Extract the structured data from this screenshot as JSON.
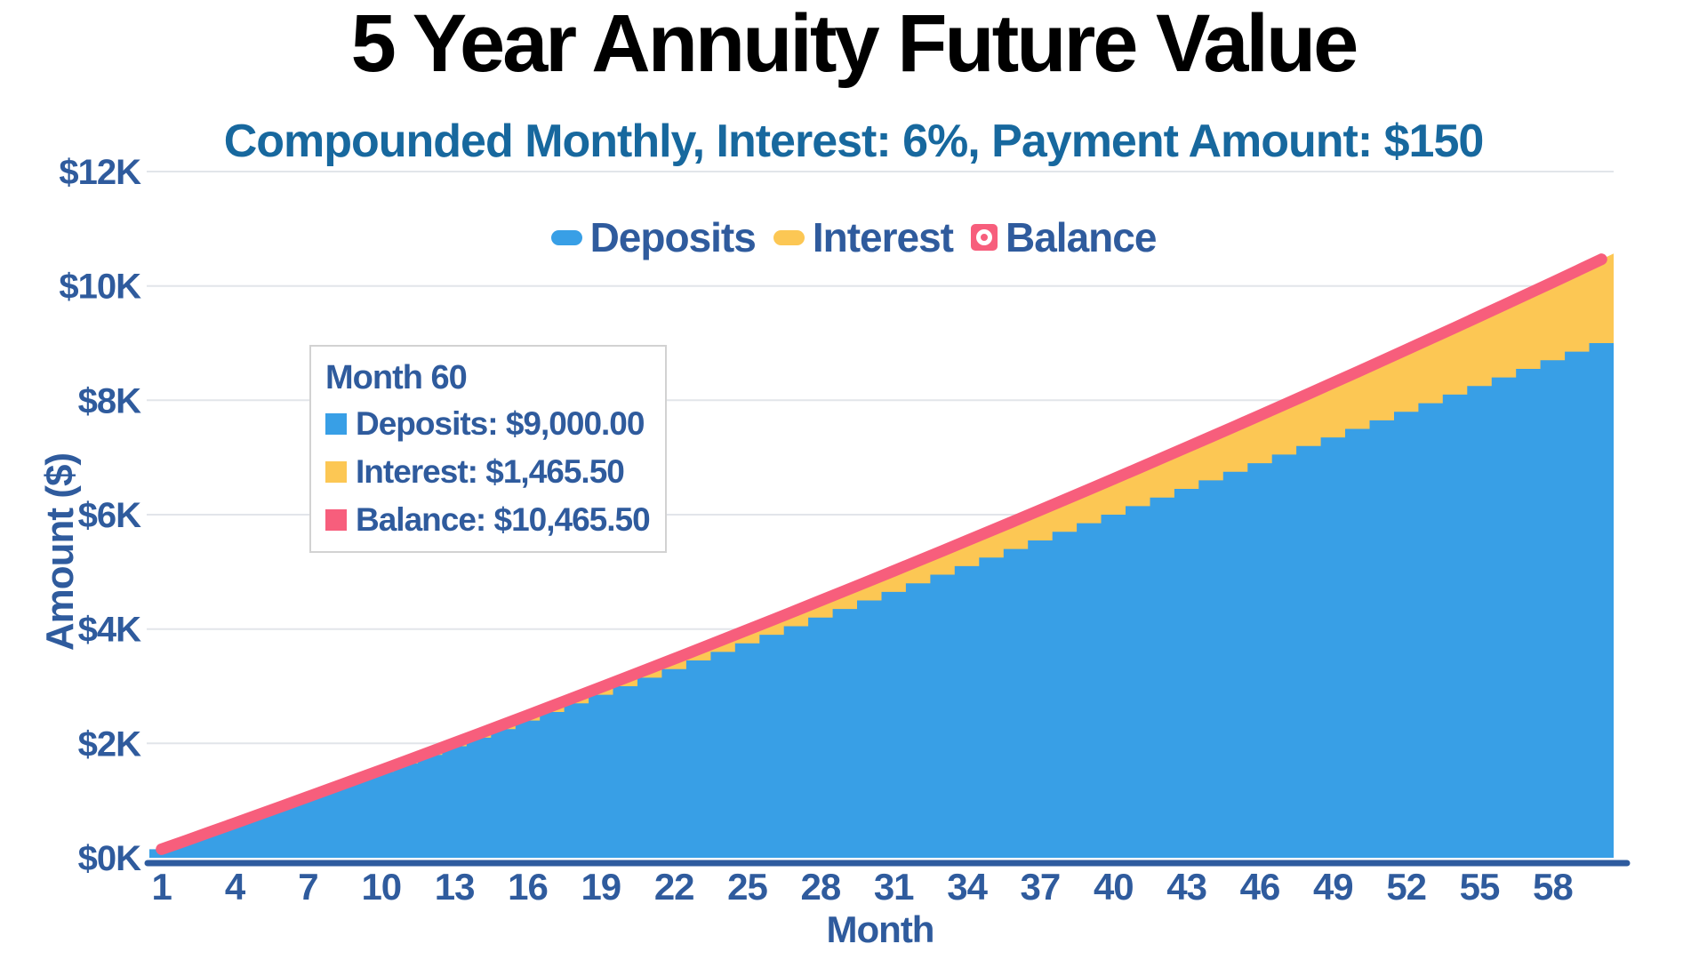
{
  "title": "5 Year Annuity Future Value",
  "subtitle": "Compounded Monthly, Interest: 6%, Payment Amount: $150",
  "colors": {
    "deposits": "#389FE6",
    "interest": "#FCC754",
    "balance": "#F75E7C",
    "text_blue": "#2F5B9D",
    "subtitle_text": "#17689E",
    "grid": "#E2E5EA",
    "axis": "#2E5B9E",
    "tooltip_border": "#D2D2D2",
    "title_text": "#000000"
  },
  "legend": {
    "items": [
      {
        "label": "Deposits",
        "color": "#389FE6",
        "marker": "pill"
      },
      {
        "label": "Interest",
        "color": "#FCC754",
        "marker": "pill"
      },
      {
        "label": "Balance",
        "color": "#F75E7C",
        "marker": "donut-square"
      }
    ]
  },
  "tooltip": {
    "title": "Month 60",
    "rows": [
      {
        "label": "Deposits",
        "value": "$9,000.00",
        "text": "Deposits: $9,000.00",
        "color": "#389FE6"
      },
      {
        "label": "Interest",
        "value": "$1,465.50",
        "text": "Interest: $1,465.50",
        "color": "#FCC754"
      },
      {
        "label": "Balance",
        "value": "$10,465.50",
        "text": "Balance: $10,465.50",
        "color": "#F75E7C"
      }
    ]
  },
  "chart_data": {
    "type": "area",
    "stacked": true,
    "title": "5 Year Annuity Future Value",
    "subtitle": "Compounded Monthly, Interest: 6%, Payment Amount: $150",
    "xlabel": "Month",
    "ylabel": "Amount ($)",
    "xlim": [
      1,
      60
    ],
    "ylim": [
      0,
      12000
    ],
    "grid": true,
    "legend_position": "top",
    "x": [
      1,
      2,
      3,
      4,
      5,
      6,
      7,
      8,
      9,
      10,
      11,
      12,
      13,
      14,
      15,
      16,
      17,
      18,
      19,
      20,
      21,
      22,
      23,
      24,
      25,
      26,
      27,
      28,
      29,
      30,
      31,
      32,
      33,
      34,
      35,
      36,
      37,
      38,
      39,
      40,
      41,
      42,
      43,
      44,
      45,
      46,
      47,
      48,
      49,
      50,
      51,
      52,
      53,
      54,
      55,
      56,
      57,
      58,
      59,
      60
    ],
    "series": [
      {
        "name": "Deposits",
        "render": "step-area",
        "color": "#389FE6",
        "values": [
          150,
          300,
          450,
          600,
          750,
          900,
          1050,
          1200,
          1350,
          1500,
          1650,
          1800,
          1950,
          2100,
          2250,
          2400,
          2550,
          2700,
          2850,
          3000,
          3150,
          3300,
          3450,
          3600,
          3750,
          3900,
          4050,
          4200,
          4350,
          4500,
          4650,
          4800,
          4950,
          5100,
          5250,
          5400,
          5550,
          5700,
          5850,
          6000,
          6150,
          6300,
          6450,
          6600,
          6750,
          6900,
          7050,
          7200,
          7350,
          7500,
          7650,
          7800,
          7950,
          8100,
          8250,
          8400,
          8550,
          8700,
          8850,
          9000
        ]
      },
      {
        "name": "Interest",
        "render": "stacked-area",
        "color": "#FCC754",
        "values": [
          0.0,
          0.75,
          2.25,
          4.52,
          7.54,
          11.33,
          15.88,
          21.21,
          27.32,
          34.2,
          41.88,
          50.33,
          59.59,
          69.63,
          80.48,
          92.13,
          104.59,
          117.87,
          131.96,
          146.87,
          162.6,
          179.16,
          196.56,
          214.79,
          233.87,
          253.79,
          274.55,
          296.18,
          318.66,
          342.0,
          366.21,
          391.29,
          417.25,
          444.09,
          471.81,
          500.41,
          529.92,
          560.32,
          591.62,
          623.83,
          656.95,
          690.98,
          725.93,
          761.81,
          798.62,
          836.37,
          875.05,
          914.67,
          955.25,
          996.77,
          1039.26,
          1082.7,
          1127.12,
          1172.5,
          1218.87,
          1266.21,
          1314.54,
          1363.86,
          1414.18,
          1465.5
        ]
      },
      {
        "name": "Balance",
        "render": "line",
        "color": "#F75E7C",
        "values": [
          150.0,
          300.75,
          452.25,
          604.52,
          757.54,
          911.33,
          1065.88,
          1221.21,
          1377.32,
          1534.2,
          1691.88,
          1850.33,
          2009.59,
          2169.63,
          2330.48,
          2492.13,
          2654.59,
          2817.87,
          2981.96,
          3146.87,
          3312.6,
          3479.16,
          3646.56,
          3814.79,
          3983.87,
          4153.79,
          4324.55,
          4496.18,
          4668.66,
          4842.0,
          5016.21,
          5191.29,
          5367.25,
          5544.09,
          5721.81,
          5900.41,
          6079.92,
          6260.32,
          6441.62,
          6623.83,
          6806.95,
          6990.98,
          7175.93,
          7361.81,
          7548.62,
          7736.37,
          7925.05,
          8114.67,
          8305.25,
          8496.77,
          8689.26,
          8882.7,
          9077.12,
          9272.5,
          9468.87,
          9666.21,
          9864.54,
          10063.86,
          10264.18,
          10465.5
        ]
      }
    ],
    "x_ticks": [
      "1",
      "4",
      "7",
      "10",
      "13",
      "16",
      "19",
      "22",
      "25",
      "28",
      "31",
      "34",
      "37",
      "40",
      "43",
      "46",
      "49",
      "52",
      "55",
      "58"
    ],
    "x_tick_values": [
      1,
      4,
      7,
      10,
      13,
      16,
      19,
      22,
      25,
      28,
      31,
      34,
      37,
      40,
      43,
      46,
      49,
      52,
      55,
      58
    ],
    "y_ticks": [
      {
        "label": "$0K",
        "value": 0
      },
      {
        "label": "$2K",
        "value": 2000
      },
      {
        "label": "$4K",
        "value": 4000
      },
      {
        "label": "$6K",
        "value": 6000
      },
      {
        "label": "$8K",
        "value": 8000
      },
      {
        "label": "$10K",
        "value": 10000
      },
      {
        "label": "$12K",
        "value": 12000
      }
    ]
  }
}
